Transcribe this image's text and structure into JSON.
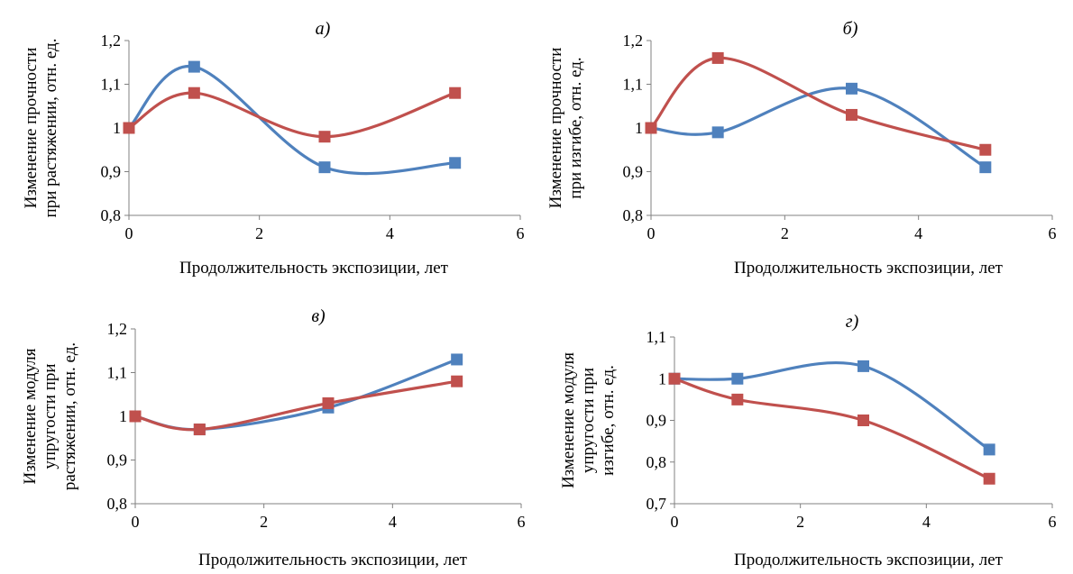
{
  "colors": {
    "series1": "#4F81BD",
    "series2": "#C0504D",
    "axis": "#808080"
  },
  "chart_data": [
    {
      "type": "line",
      "title": "а)",
      "xlabel": "Продолжительность экспозиции, лет",
      "ylabel": [
        "Изменение прочности",
        "при растяжении, отн. ед."
      ],
      "xlim": [
        0,
        6
      ],
      "ylim": [
        0.8,
        1.2
      ],
      "xticks": [
        0,
        2,
        4,
        6
      ],
      "xtick_labels": [
        "0",
        "2",
        "4",
        "6"
      ],
      "yticks": [
        0.8,
        0.9,
        1.0,
        1.1,
        1.2
      ],
      "ytick_labels": [
        "0,8",
        "0,9",
        "1",
        "1,1",
        "1,2"
      ],
      "grid": false,
      "smooth": true,
      "series": [
        {
          "x": [
            0,
            1,
            3,
            5
          ],
          "values": [
            1.0,
            1.14,
            0.91,
            0.92
          ]
        },
        {
          "x": [
            0,
            1,
            3,
            5
          ],
          "values": [
            1.0,
            1.08,
            0.98,
            1.08
          ]
        }
      ]
    },
    {
      "type": "line",
      "title": "б)",
      "xlabel": "Продолжительность экспозиции, лет",
      "ylabel": [
        "Изменение прочности",
        "при изгибе, отн. ед."
      ],
      "xlim": [
        0,
        6
      ],
      "ylim": [
        0.8,
        1.2
      ],
      "xticks": [
        0,
        2,
        4,
        6
      ],
      "xtick_labels": [
        "0",
        "2",
        "4",
        "6"
      ],
      "yticks": [
        0.8,
        0.9,
        1.0,
        1.1,
        1.2
      ],
      "ytick_labels": [
        "0,8",
        "0,9",
        "1",
        "1,1",
        "1,2"
      ],
      "grid": false,
      "smooth": true,
      "series": [
        {
          "x": [
            0,
            1,
            3,
            5
          ],
          "values": [
            1.0,
            0.99,
            1.09,
            0.91
          ]
        },
        {
          "x": [
            0,
            1,
            3,
            5
          ],
          "values": [
            1.0,
            1.16,
            1.03,
            0.95
          ]
        }
      ]
    },
    {
      "type": "line",
      "title": "в)",
      "xlabel": "Продолжительность экспозиции, лет",
      "ylabel": [
        "Изменение модуля",
        "упругости при",
        "растяжении, отн. ед."
      ],
      "xlim": [
        0,
        6
      ],
      "ylim": [
        0.8,
        1.2
      ],
      "xticks": [
        0,
        2,
        4,
        6
      ],
      "xtick_labels": [
        "0",
        "2",
        "4",
        "6"
      ],
      "yticks": [
        0.8,
        0.9,
        1.0,
        1.1,
        1.2
      ],
      "ytick_labels": [
        "0,8",
        "0,9",
        "1",
        "1,1",
        "1,2"
      ],
      "grid": false,
      "smooth": true,
      "series": [
        {
          "x": [
            0,
            1,
            3,
            5
          ],
          "values": [
            1.0,
            0.97,
            1.02,
            1.13
          ]
        },
        {
          "x": [
            0,
            1,
            3,
            5
          ],
          "values": [
            1.0,
            0.97,
            1.03,
            1.08
          ]
        }
      ]
    },
    {
      "type": "line",
      "title": "г)",
      "xlabel": "Продолжительность экспозиции, лет",
      "ylabel": [
        "Изменение модуля",
        "упругости при",
        "изгибе, отн. ед."
      ],
      "xlim": [
        0,
        6
      ],
      "ylim": [
        0.7,
        1.1
      ],
      "xticks": [
        0,
        2,
        4,
        6
      ],
      "xtick_labels": [
        "0",
        "2",
        "4",
        "6"
      ],
      "yticks": [
        0.7,
        0.8,
        0.9,
        1.0,
        1.1
      ],
      "ytick_labels": [
        "0,7",
        "0,8",
        "0,9",
        "1",
        "1,1"
      ],
      "grid": false,
      "smooth": true,
      "series": [
        {
          "x": [
            0,
            1,
            3,
            5
          ],
          "values": [
            1.0,
            1.0,
            1.03,
            0.83
          ]
        },
        {
          "x": [
            0,
            1,
            3,
            5
          ],
          "values": [
            1.0,
            0.95,
            0.9,
            0.76
          ]
        }
      ]
    }
  ]
}
